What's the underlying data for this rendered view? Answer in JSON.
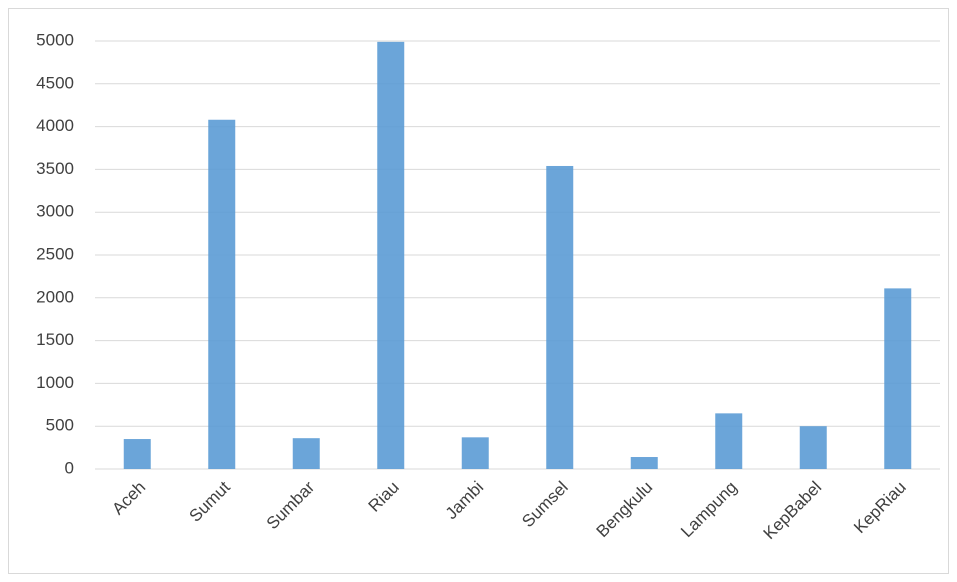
{
  "chart_data": {
    "type": "bar",
    "categories": [
      "Aceh",
      "Sumut",
      "Sumbar",
      "Riau",
      "Jambi",
      "Sumsel",
      "Bengkulu",
      "Lampung",
      "KepBabel",
      "KepRiau"
    ],
    "values": [
      350,
      4080,
      360,
      4990,
      370,
      3540,
      140,
      650,
      500,
      2110
    ],
    "color": "#5b9bd5",
    "ylim": [
      0,
      5000
    ],
    "yticks": [
      0,
      500,
      1000,
      1500,
      2000,
      2500,
      3000,
      3500,
      4000,
      4500,
      5000
    ],
    "grid": true
  }
}
